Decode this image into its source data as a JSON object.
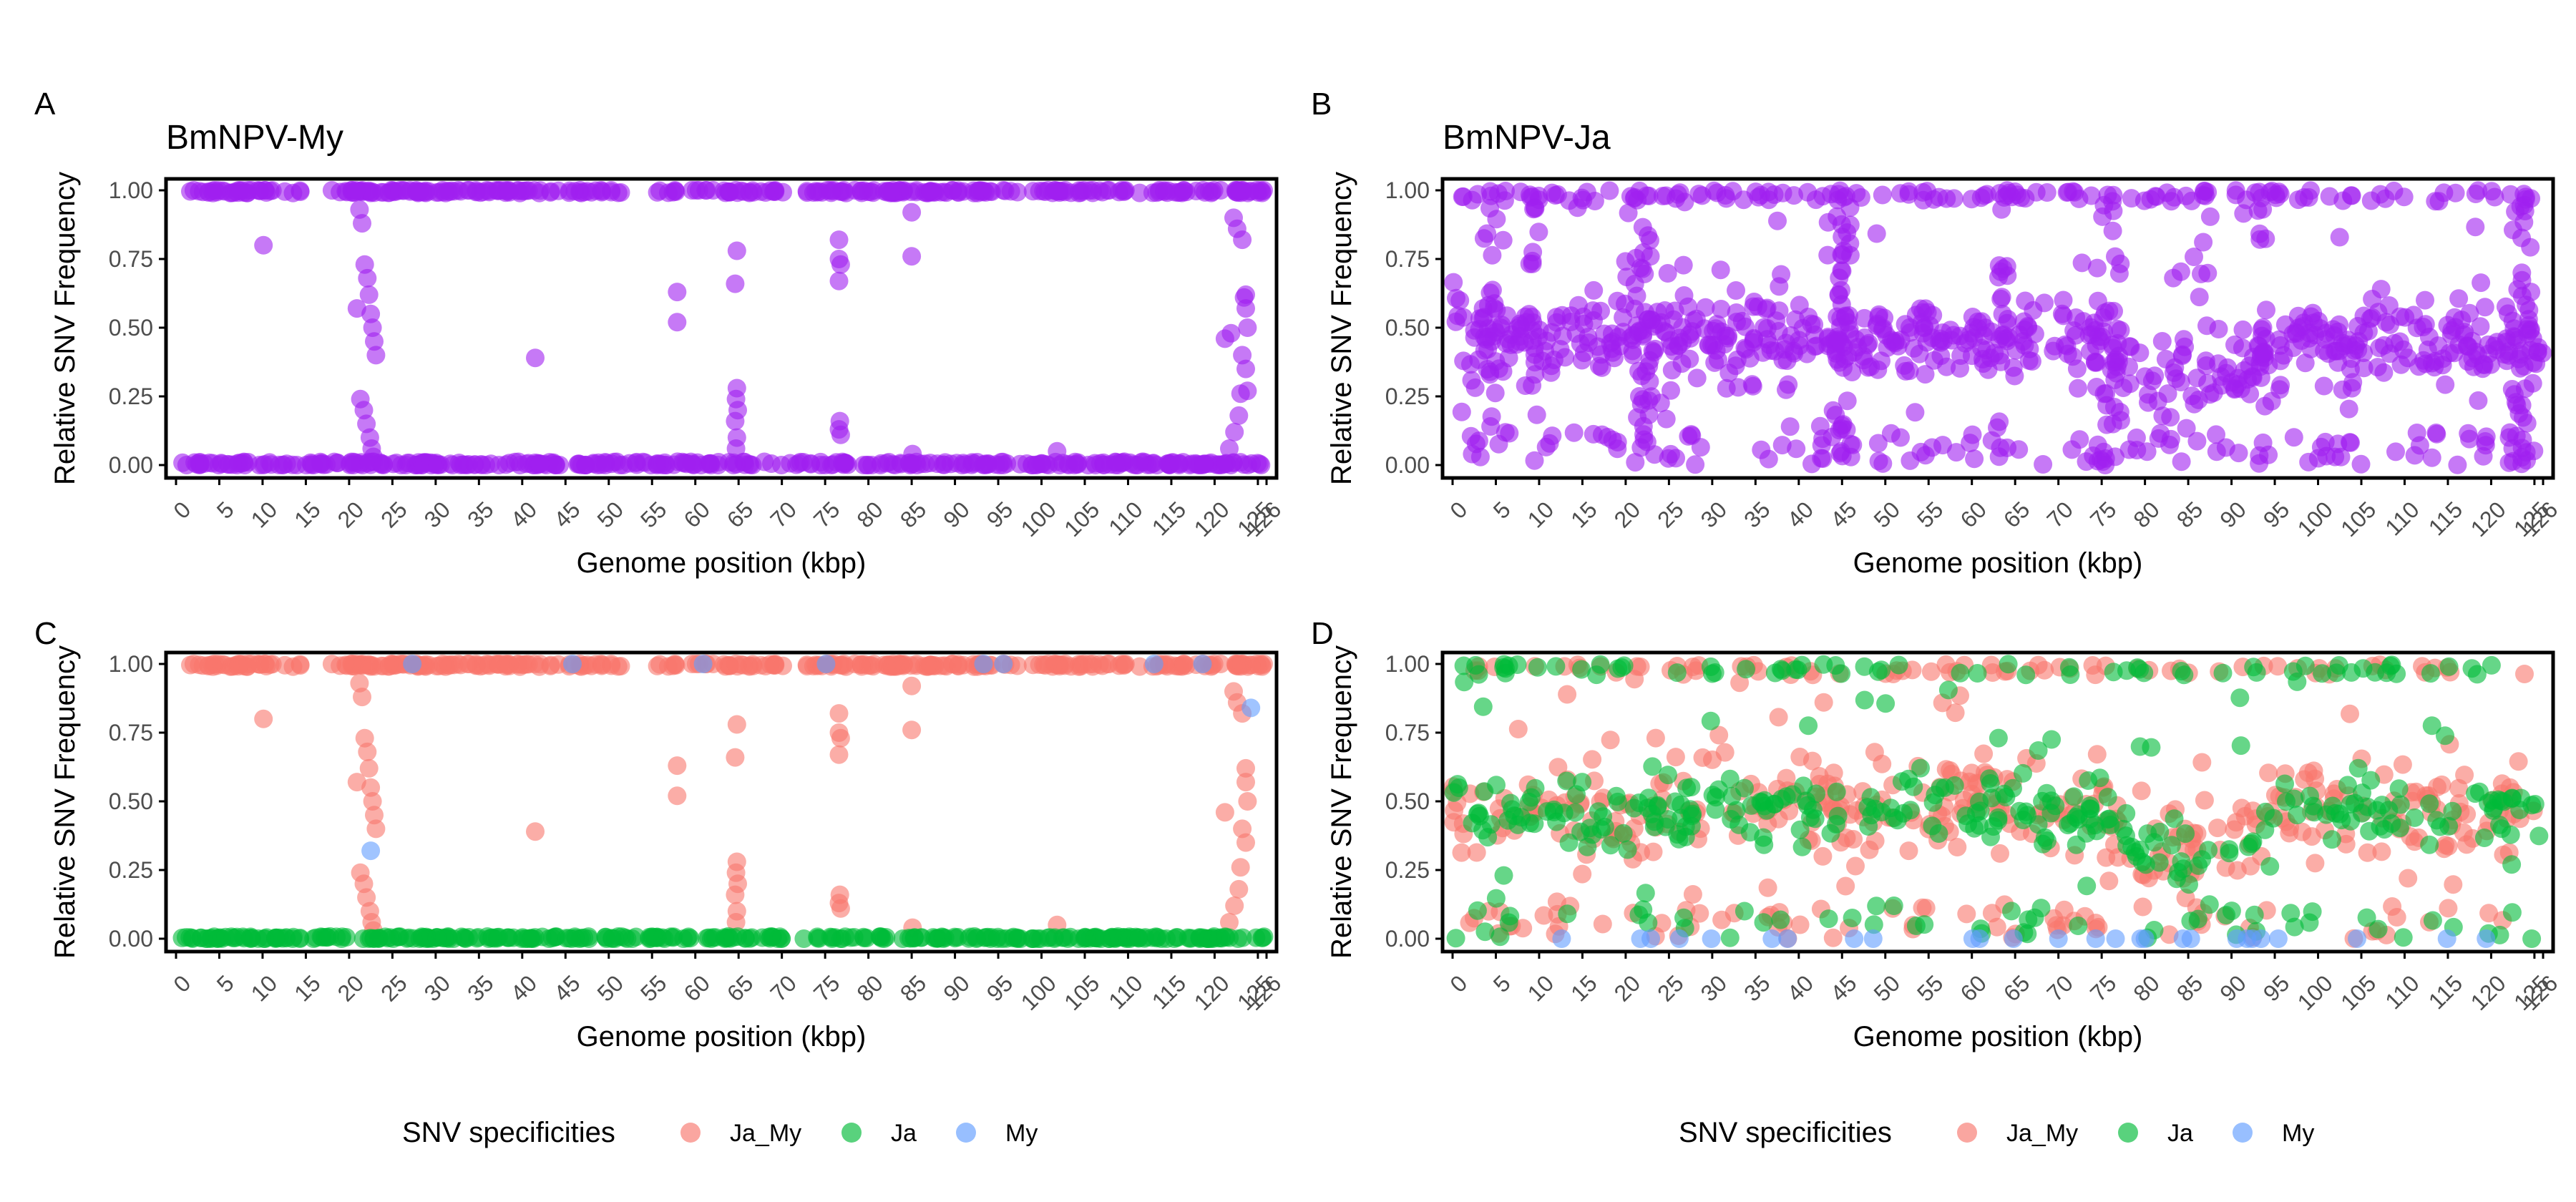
{
  "x_tick_labels": [
    "0",
    "5",
    "10",
    "15",
    "20",
    "25",
    "30",
    "35",
    "40",
    "45",
    "50",
    "55",
    "60",
    "65",
    "70",
    "75",
    "80",
    "85",
    "90",
    "95",
    "100",
    "105",
    "110",
    "115",
    "120",
    "125",
    "126"
  ],
  "y_tick_labels": [
    "0.00",
    "0.25",
    "0.50",
    "0.75",
    "1.00"
  ],
  "x_axis_label": "Genome position (kbp)",
  "y_axis_label": "Relative SNV Frequency",
  "colors": {
    "purple": "#a020f0",
    "ja_my": "#f8766d",
    "ja": "#00ba38",
    "my": "#619cff",
    "axis": "#000000",
    "tick_text": "#4d4d4d"
  },
  "legends": [
    {
      "title": "SNV specificities",
      "items": [
        "Ja_My",
        "Ja",
        "My"
      ]
    },
    {
      "title": "SNV specificities",
      "items": [
        "Ja_My",
        "Ja",
        "My"
      ]
    }
  ],
  "chart_data": [
    {
      "panel": "A",
      "title": "BmNPV-My",
      "type": "scatter",
      "xlabel": "Genome position (kbp)",
      "ylabel": "Relative SNV Frequency",
      "xlim": [
        0,
        126
      ],
      "ylim": [
        0,
        1
      ],
      "series": [
        {
          "color": "purple",
          "points": [
            [
              10.1,
              0.8
            ],
            [
              20.9,
              0.57
            ],
            [
              21.2,
              0.93
            ],
            [
              21.5,
              0.88
            ],
            [
              21.8,
              0.73
            ],
            [
              22.1,
              0.68
            ],
            [
              22.3,
              0.62
            ],
            [
              22.5,
              0.55
            ],
            [
              22.7,
              0.5
            ],
            [
              22.9,
              0.45
            ],
            [
              23.1,
              0.4
            ],
            [
              21.3,
              0.24
            ],
            [
              21.7,
              0.2
            ],
            [
              22.0,
              0.15
            ],
            [
              22.4,
              0.1
            ],
            [
              22.6,
              0.06
            ],
            [
              22.8,
              0.03
            ],
            [
              41.5,
              0.39
            ],
            [
              57.9,
              0.63
            ],
            [
              57.9,
              0.52
            ],
            [
              64.8,
              0.78
            ],
            [
              64.6,
              0.66
            ],
            [
              64.8,
              0.28
            ],
            [
              64.7,
              0.24
            ],
            [
              64.9,
              0.2
            ],
            [
              64.6,
              0.16
            ],
            [
              64.8,
              0.1
            ],
            [
              64.7,
              0.06
            ],
            [
              76.6,
              0.82
            ],
            [
              76.6,
              0.75
            ],
            [
              76.8,
              0.73
            ],
            [
              76.6,
              0.67
            ],
            [
              76.7,
              0.16
            ],
            [
              76.6,
              0.13
            ],
            [
              76.8,
              0.11
            ],
            [
              85.0,
              0.92
            ],
            [
              85.0,
              0.76
            ],
            [
              85.1,
              0.04
            ],
            [
              101.8,
              0.05
            ],
            [
              121.2,
              0.46
            ],
            [
              122.2,
              0.9
            ],
            [
              122.6,
              0.86
            ],
            [
              123.2,
              0.82
            ],
            [
              123.6,
              0.62
            ],
            [
              123.6,
              0.57
            ],
            [
              123.8,
              0.5
            ],
            [
              123.2,
              0.4
            ],
            [
              123.6,
              0.35
            ],
            [
              123.0,
              0.26
            ],
            [
              122.8,
              0.18
            ],
            [
              122.3,
              0.12
            ],
            [
              121.7,
              0.06
            ],
            [
              121.9,
              0.48
            ],
            [
              123.8,
              0.27
            ],
            [
              123.4,
              0.61
            ]
          ]
        }
      ]
    },
    {
      "panel": "B",
      "title": "BmNPV-Ja",
      "type": "scatter",
      "xlabel": "Genome position (kbp)",
      "ylabel": "Relative SNV Frequency",
      "xlim": [
        0,
        126
      ],
      "ylim": [
        0,
        1
      ],
      "series": [
        {
          "color": "purple",
          "points": []
        }
      ]
    },
    {
      "panel": "C",
      "title": "",
      "type": "scatter",
      "xlabel": "Genome position (kbp)",
      "ylabel": "Relative SNV Frequency",
      "xlim": [
        0,
        126
      ],
      "ylim": [
        0,
        1
      ],
      "series": [
        {
          "name": "Ja_My",
          "color": "ja_my",
          "points": [
            [
              10.1,
              0.8
            ],
            [
              20.9,
              0.57
            ],
            [
              21.2,
              0.93
            ],
            [
              21.5,
              0.88
            ],
            [
              21.8,
              0.73
            ],
            [
              22.1,
              0.68
            ],
            [
              22.3,
              0.62
            ],
            [
              22.5,
              0.55
            ],
            [
              22.7,
              0.5
            ],
            [
              22.9,
              0.45
            ],
            [
              23.1,
              0.4
            ],
            [
              21.3,
              0.24
            ],
            [
              21.7,
              0.2
            ],
            [
              22.0,
              0.15
            ],
            [
              22.4,
              0.1
            ],
            [
              22.6,
              0.06
            ],
            [
              22.8,
              0.03
            ],
            [
              41.5,
              0.39
            ],
            [
              57.9,
              0.63
            ],
            [
              57.9,
              0.52
            ],
            [
              64.8,
              0.78
            ],
            [
              64.6,
              0.66
            ],
            [
              64.8,
              0.28
            ],
            [
              64.7,
              0.24
            ],
            [
              64.9,
              0.2
            ],
            [
              64.6,
              0.16
            ],
            [
              64.8,
              0.1
            ],
            [
              64.7,
              0.06
            ],
            [
              76.6,
              0.82
            ],
            [
              76.6,
              0.75
            ],
            [
              76.8,
              0.73
            ],
            [
              76.6,
              0.67
            ],
            [
              76.7,
              0.16
            ],
            [
              76.6,
              0.13
            ],
            [
              76.8,
              0.11
            ],
            [
              85.0,
              0.92
            ],
            [
              85.0,
              0.76
            ],
            [
              85.1,
              0.04
            ],
            [
              101.8,
              0.05
            ],
            [
              121.2,
              0.46
            ],
            [
              122.2,
              0.9
            ],
            [
              122.6,
              0.86
            ],
            [
              123.2,
              0.82
            ],
            [
              123.6,
              0.62
            ],
            [
              123.6,
              0.57
            ],
            [
              123.8,
              0.5
            ],
            [
              123.2,
              0.4
            ],
            [
              123.6,
              0.35
            ],
            [
              123.0,
              0.26
            ],
            [
              122.8,
              0.18
            ],
            [
              122.3,
              0.12
            ],
            [
              121.7,
              0.06
            ]
          ]
        },
        {
          "name": "Ja",
          "color": "ja",
          "points": []
        },
        {
          "name": "My",
          "color": "my",
          "points": [
            [
              22.5,
              0.32
            ],
            [
              124.2,
              0.84
            ],
            [
              27.3,
              1.0
            ],
            [
              45.8,
              1.0
            ],
            [
              60.9,
              1.0
            ],
            [
              75.1,
              1.0
            ],
            [
              93.3,
              1.0
            ],
            [
              95.6,
              1.0
            ],
            [
              113.0,
              1.0
            ],
            [
              118.6,
              1.0
            ]
          ]
        }
      ]
    },
    {
      "panel": "D",
      "title": "",
      "type": "scatter",
      "xlabel": "Genome position (kbp)",
      "ylabel": "Relative SNV Frequency",
      "xlim": [
        0,
        126
      ],
      "ylim": [
        0,
        1
      ],
      "series": [
        {
          "name": "Ja_My",
          "color": "ja_my",
          "points": []
        },
        {
          "name": "Ja",
          "color": "ja",
          "points": []
        },
        {
          "name": "My",
          "color": "my",
          "points": [
            [
              12.6,
              0.0
            ],
            [
              21.7,
              0.0
            ],
            [
              22.9,
              0.0
            ],
            [
              26.2,
              0.0
            ],
            [
              29.9,
              0.0
            ],
            [
              36.9,
              0.0
            ],
            [
              38.7,
              0.0
            ],
            [
              46.4,
              0.0
            ],
            [
              48.6,
              0.0
            ],
            [
              60.1,
              0.0
            ],
            [
              60.9,
              0.0
            ],
            [
              64.8,
              0.0
            ],
            [
              70.0,
              0.0
            ],
            [
              74.3,
              0.0
            ],
            [
              76.6,
              0.0
            ],
            [
              79.5,
              0.0
            ],
            [
              80.0,
              0.0
            ],
            [
              84.4,
              0.0
            ],
            [
              85.3,
              0.0
            ],
            [
              90.6,
              0.0
            ],
            [
              91.8,
              0.0
            ],
            [
              92.4,
              0.0
            ],
            [
              93.4,
              0.0
            ],
            [
              95.4,
              0.0
            ],
            [
              104.5,
              0.0
            ],
            [
              114.9,
              0.0
            ],
            [
              119.4,
              0.0
            ]
          ]
        }
      ]
    }
  ]
}
